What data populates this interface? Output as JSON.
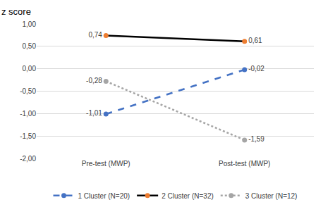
{
  "chart_data": {
    "type": "line",
    "y_label": "z score",
    "categories": [
      "Pre-test (MWP)",
      "Post-test (MWP)"
    ],
    "series": [
      {
        "name": "1 Cluster (N=20)",
        "color": "#4472c4",
        "line_style": "dashed",
        "marker": "circle",
        "values": [
          -1.01,
          -0.02
        ],
        "value_labels": [
          "-1,01",
          "-0,02"
        ]
      },
      {
        "name": "2 Cluster (N=32)",
        "color": "#000000",
        "colors": [
          "#ed7d31",
          "#ed7d31"
        ],
        "line_style": "solid",
        "marker": "circle",
        "values": [
          0.74,
          0.61
        ],
        "value_labels": [
          "0,74",
          "0,61"
        ]
      },
      {
        "name": "3 Cluster (N=12)",
        "color": "#a5a5a5",
        "line_style": "dotted",
        "marker": "circle",
        "values": [
          -0.28,
          -1.59
        ],
        "value_labels": [
          "-0,28",
          "-1,59"
        ]
      }
    ],
    "ylim": [
      -2,
      1
    ],
    "yticks": [
      {
        "value": -2,
        "label": "-2,00"
      },
      {
        "value": -1.5,
        "label": "-1,50"
      },
      {
        "value": -1,
        "label": "-1,00"
      },
      {
        "value": -0.5,
        "label": "-0,50"
      },
      {
        "value": 0,
        "label": "0,00"
      },
      {
        "value": 0.5,
        "label": "0,50"
      },
      {
        "value": 1,
        "label": "1,00"
      }
    ],
    "grid": true,
    "legend": "bottom",
    "data_labels": true
  }
}
